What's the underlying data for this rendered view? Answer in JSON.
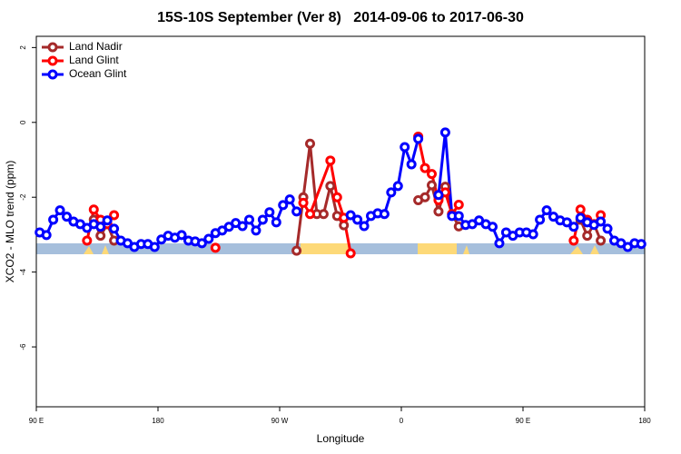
{
  "chart_data": {
    "type": "line",
    "title": "15S-10S September (Ver 8)   2014-09-06 to 2017-06-30",
    "x_label": "Longitude",
    "y_label": "XCO2 - MLO trend (ppm)",
    "xlim": [
      90,
      540
    ],
    "ylim": [
      -7.6,
      2.3
    ],
    "xticks": [
      {
        "value": 90,
        "label": "90 E"
      },
      {
        "value": 180,
        "label": "180"
      },
      {
        "value": 270,
        "label": "90 W"
      },
      {
        "value": 360,
        "label": "0"
      },
      {
        "value": 450,
        "label": "90 E"
      },
      {
        "value": 540,
        "label": "180"
      }
    ],
    "yticks": [
      2,
      0,
      -2,
      -4,
      -6
    ],
    "legend": "top-left",
    "series": [
      {
        "name": "Land Nadir",
        "color": "#a52a2a",
        "x": [
          132.5,
          137.5,
          142.5,
          147.5,
          152.5,
          282.5,
          287.5,
          292.5,
          297.5,
          302.5,
          307.5,
          312.5,
          317.5,
          322.5,
          372.5,
          377.5,
          382.5,
          387.5,
          392.5,
          397.5,
          402.5,
          407.5,
          492.5,
          497.5,
          502.5,
          507.5
        ],
        "values": [
          -2.6,
          -3.03,
          -2.72,
          -3.16,
          null,
          -3.43,
          -2.0,
          -0.57,
          -2.45,
          -2.45,
          -1.7,
          -2.5,
          -2.75,
          null,
          -2.08,
          -2.0,
          -1.68,
          -2.38,
          -1.72,
          -2.45,
          -2.78,
          null,
          -2.6,
          -3.03,
          -2.72,
          -3.16
        ]
      },
      {
        "name": "Land Glint",
        "color": "#ff0000",
        "x": [
          127.5,
          132.5,
          137.5,
          142.5,
          147.5,
          152.5,
          222.5,
          227.5,
          287.5,
          292.5,
          307.5,
          312.5,
          317.5,
          322.5,
          327.5,
          372.5,
          377.5,
          382.5,
          387.5,
          392.5,
          397.5,
          402.5,
          407.5,
          487.5,
          492.5,
          497.5,
          502.5,
          507.5
        ],
        "values": [
          -3.16,
          -2.33,
          -2.6,
          -2.72,
          -2.48,
          null,
          -3.35,
          null,
          -2.15,
          -2.45,
          -1.02,
          -2.0,
          -2.55,
          -3.5,
          null,
          -0.38,
          -1.22,
          -1.38,
          -2.08,
          -1.87,
          -2.45,
          -2.2,
          null,
          -3.16,
          -2.33,
          -2.6,
          -2.72,
          -2.48
        ]
      },
      {
        "name": "Ocean Glint",
        "color": "#0000ff",
        "x": [
          92.5,
          97.5,
          102.5,
          107.5,
          112.5,
          117.5,
          122.5,
          127.5,
          132.5,
          137.5,
          142.5,
          147.5,
          152.5,
          157.5,
          162.5,
          167.5,
          172.5,
          177.5,
          182.5,
          187.5,
          192.5,
          197.5,
          202.5,
          207.5,
          212.5,
          217.5,
          222.5,
          227.5,
          232.5,
          237.5,
          242.5,
          247.5,
          252.5,
          257.5,
          262.5,
          267.5,
          272.5,
          277.5,
          282.5,
          287.5,
          322.5,
          327.5,
          332.5,
          337.5,
          342.5,
          347.5,
          352.5,
          357.5,
          362.5,
          367.5,
          372.5,
          377.5,
          387.5,
          392.5,
          397.5,
          402.5,
          407.5,
          412.5,
          417.5,
          422.5,
          427.5,
          432.5,
          437.5,
          442.5,
          447.5,
          452.5,
          457.5,
          462.5,
          467.5,
          472.5,
          477.5,
          482.5,
          487.5,
          492.5,
          497.5,
          502.5,
          507.5,
          512.5,
          517.5,
          522.5,
          527.5,
          532.5,
          537.5
        ],
        "values": [
          -2.94,
          -3.01,
          -2.6,
          -2.35,
          -2.52,
          -2.65,
          -2.72,
          -2.82,
          -2.72,
          -2.79,
          -2.62,
          -2.84,
          -3.16,
          -3.23,
          -3.33,
          -3.25,
          -3.25,
          -3.33,
          -3.13,
          -3.03,
          -3.08,
          -3.01,
          -3.16,
          -3.18,
          -3.23,
          -3.11,
          -2.96,
          -2.89,
          -2.79,
          -2.69,
          -2.77,
          -2.6,
          -2.89,
          -2.6,
          -2.4,
          -2.67,
          -2.21,
          -2.06,
          -2.38,
          null,
          -2.48,
          -2.6,
          -2.77,
          -2.5,
          -2.43,
          -2.45,
          -1.87,
          -1.7,
          -0.66,
          -1.12,
          -0.44,
          null,
          -1.94,
          -0.27,
          -2.5,
          -2.5,
          -2.74,
          -2.72,
          -2.62,
          -2.72,
          -2.79,
          -3.23,
          -2.94,
          -3.03,
          -2.94,
          -2.94,
          -2.99,
          -2.6,
          -2.35,
          -2.52,
          -2.62,
          -2.67,
          -2.79,
          -2.55,
          -2.67,
          -2.74,
          -2.65,
          -2.84,
          -3.16,
          -3.23,
          -3.33,
          -3.23,
          -3.25
        ]
      }
    ]
  }
}
